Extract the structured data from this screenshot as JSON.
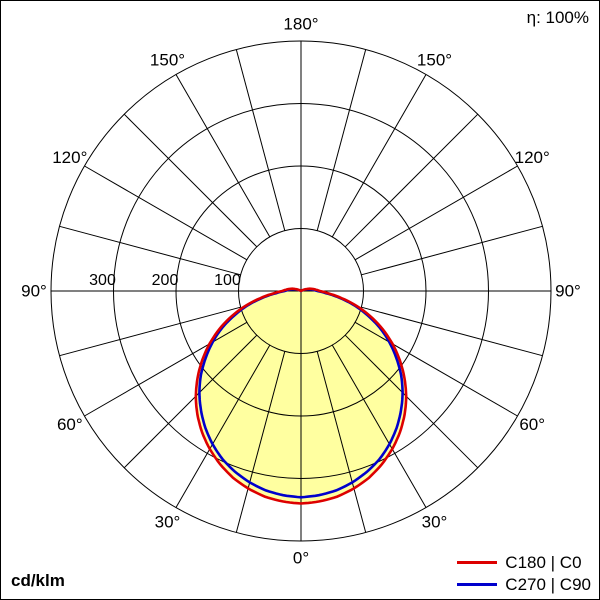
{
  "page": {
    "efficiency": "η: 100%",
    "unit": "cd/klm"
  },
  "legend": [
    {
      "label": "C180 | C0",
      "color": "#dd0000"
    },
    {
      "label": "C270 | C90",
      "color": "#0000cc"
    }
  ],
  "chart_data": {
    "type": "polar",
    "unit": "cd/klm",
    "efficiency_percent": 100,
    "max_value": 400,
    "ring_values": [
      100,
      200,
      300,
      400
    ],
    "ring_labels": [
      {
        "value": 100,
        "text": "100"
      },
      {
        "value": 200,
        "text": "200"
      },
      {
        "value": 300,
        "text": "300"
      }
    ],
    "angle_step_deg": 15,
    "angle_labels": [
      {
        "deg": 0,
        "text": "0°"
      },
      {
        "deg": 30,
        "text": "30°"
      },
      {
        "deg": 60,
        "text": "60°"
      },
      {
        "deg": 90,
        "text": "90°"
      },
      {
        "deg": 120,
        "text": "120°"
      },
      {
        "deg": 150,
        "text": "150°"
      },
      {
        "deg": 180,
        "text": "180°"
      }
    ],
    "gamma_step_deg": 5,
    "series": [
      {
        "name": "C180 | C0",
        "color": "#dd0000",
        "fill_color": "#ffffa0",
        "values": [
          340,
          338,
          334,
          327,
          318,
          306,
          292,
          276,
          258,
          238,
          216,
          193,
          169,
          144,
          118,
          92,
          66,
          44,
          30,
          24,
          19,
          14,
          9,
          5,
          2,
          0,
          0,
          0,
          0,
          0,
          0,
          0,
          0,
          0,
          0,
          0,
          0
        ]
      },
      {
        "name": "C270 | C90",
        "color": "#0000cc",
        "values": [
          330,
          328,
          324,
          317,
          308,
          297,
          283,
          267,
          249,
          230,
          209,
          186,
          163,
          139,
          113,
          88,
          62,
          40,
          26,
          20,
          15,
          10,
          6,
          3,
          1,
          0,
          0,
          0,
          0,
          0,
          0,
          0,
          0,
          0,
          0,
          0,
          0
        ]
      }
    ]
  }
}
